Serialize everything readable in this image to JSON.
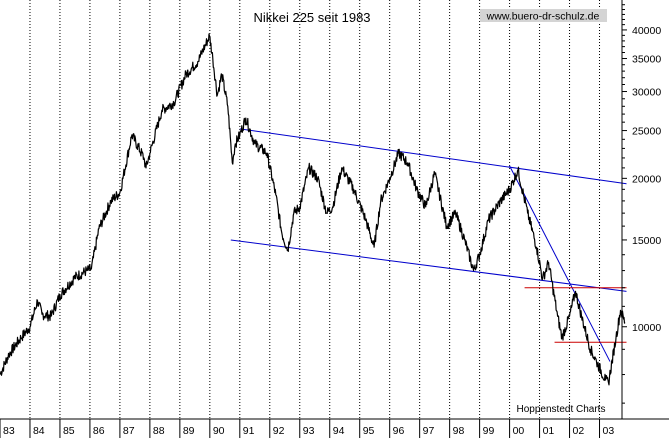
{
  "chart_data": {
    "type": "line",
    "title": "Nikkei 225 seit 1983",
    "watermark": "www.buero-dr-schulz.de",
    "source": "Hoppenstedt Charts",
    "y_scale": "log",
    "ylim": [
      6500,
      46000
    ],
    "y_ticks": [
      10000,
      15000,
      20000,
      25000,
      30000,
      35000,
      40000
    ],
    "y_tick_labels": [
      "10000",
      "15000",
      "20000",
      "25000",
      "30000",
      "35000",
      "40000"
    ],
    "x_tick_labels": [
      "83",
      "84",
      "85",
      "86",
      "87",
      "88",
      "89",
      "90",
      "91",
      "92",
      "93",
      "94",
      "95",
      "96",
      "97",
      "98",
      "99",
      "00",
      "01",
      "02",
      "03"
    ],
    "grid": "vertical dotted",
    "colors": {
      "price": "#000000",
      "trend": "#0000cc",
      "support": "#cc0000",
      "site_bg": "#d4d4d4"
    },
    "series": [
      {
        "values": [
          [
            "1983.00",
            8000
          ],
          [
            "1983.30",
            8800
          ],
          [
            "1983.70",
            9500
          ],
          [
            "1984.00",
            10000
          ],
          [
            "1984.25",
            11300
          ],
          [
            "1984.40",
            10600
          ],
          [
            "1984.70",
            10500
          ],
          [
            "1985.00",
            11600
          ],
          [
            "1985.50",
            12600
          ],
          [
            "1985.90",
            13000
          ],
          [
            "1986.05",
            13100
          ],
          [
            "1986.30",
            15800
          ],
          [
            "1986.70",
            18000
          ],
          [
            "1987.00",
            18700
          ],
          [
            "1987.40",
            24500
          ],
          [
            "1987.80",
            22000
          ],
          [
            "1987.87",
            21000
          ],
          [
            "1988.00",
            22500
          ],
          [
            "1988.40",
            27500
          ],
          [
            "1988.80",
            28500
          ],
          [
            "1989.20",
            32500
          ],
          [
            "1989.60",
            34500
          ],
          [
            "1989.99",
            38900
          ],
          [
            "1990.10",
            35000
          ],
          [
            "1990.25",
            29500
          ],
          [
            "1990.40",
            32500
          ],
          [
            "1990.60",
            28000
          ],
          [
            "1990.75",
            21500
          ],
          [
            "1990.85",
            23500
          ],
          [
            "1991.00",
            24500
          ],
          [
            "1991.20",
            26500
          ],
          [
            "1991.50",
            23500
          ],
          [
            "1991.90",
            22500
          ],
          [
            "1992.20",
            18500
          ],
          [
            "1992.40",
            15500
          ],
          [
            "1992.60",
            14300
          ],
          [
            "1992.80",
            17000
          ],
          [
            "1993.00",
            17500
          ],
          [
            "1993.30",
            21000
          ],
          [
            "1993.60",
            20000
          ],
          [
            "1993.90",
            17000
          ],
          [
            "1994.10",
            17500
          ],
          [
            "1994.40",
            21000
          ],
          [
            "1994.80",
            19000
          ],
          [
            "1995.20",
            16500
          ],
          [
            "1995.48",
            14500
          ],
          [
            "1995.70",
            18000
          ],
          [
            "1996.00",
            20000
          ],
          [
            "1996.30",
            22500
          ],
          [
            "1996.60",
            21500
          ],
          [
            "1996.90",
            19000
          ],
          [
            "1997.20",
            17500
          ],
          [
            "1997.50",
            20500
          ],
          [
            "1997.90",
            16000
          ],
          [
            "1998.20",
            17000
          ],
          [
            "1998.50",
            15000
          ],
          [
            "1998.80",
            13000
          ],
          [
            "1999.00",
            14000
          ],
          [
            "1999.30",
            16500
          ],
          [
            "1999.70",
            18000
          ],
          [
            "2000.00",
            19000
          ],
          [
            "2000.28",
            20800
          ],
          [
            "2000.60",
            17000
          ],
          [
            "2000.90",
            14500
          ],
          [
            "2001.10",
            12500
          ],
          [
            "2001.30",
            13500
          ],
          [
            "2001.60",
            10500
          ],
          [
            "2001.75",
            9500
          ],
          [
            "2002.00",
            10500
          ],
          [
            "2002.20",
            11800
          ],
          [
            "2002.40",
            10500
          ],
          [
            "2002.70",
            9000
          ],
          [
            "2002.90",
            8500
          ],
          [
            "2003.20",
            7800
          ],
          [
            "2003.30",
            7700
          ],
          [
            "2003.55",
            9500
          ],
          [
            "2003.70",
            10800
          ],
          [
            "2003.85",
            10200
          ]
        ]
      }
    ],
    "annotations": [
      {
        "type": "trendline",
        "color": "#0000cc",
        "from": [
          "1991.00",
          25200
        ],
        "to": [
          "2003.90",
          19500
        ]
      },
      {
        "type": "trendline",
        "color": "#0000cc",
        "from": [
          "1990.70",
          15000
        ],
        "to": [
          "2003.90",
          11800
        ]
      },
      {
        "type": "trendline",
        "color": "#0000cc",
        "from": [
          "2000.00",
          21200
        ],
        "to": [
          "2003.35",
          8500
        ]
      },
      {
        "type": "level",
        "color": "#cc0000",
        "from": [
          "2000.50",
          12000
        ],
        "to": [
          "2003.90",
          12000
        ]
      },
      {
        "type": "level",
        "color": "#cc0000",
        "from": [
          "2001.50",
          9300
        ],
        "to": [
          "2003.90",
          9300
        ]
      }
    ]
  }
}
